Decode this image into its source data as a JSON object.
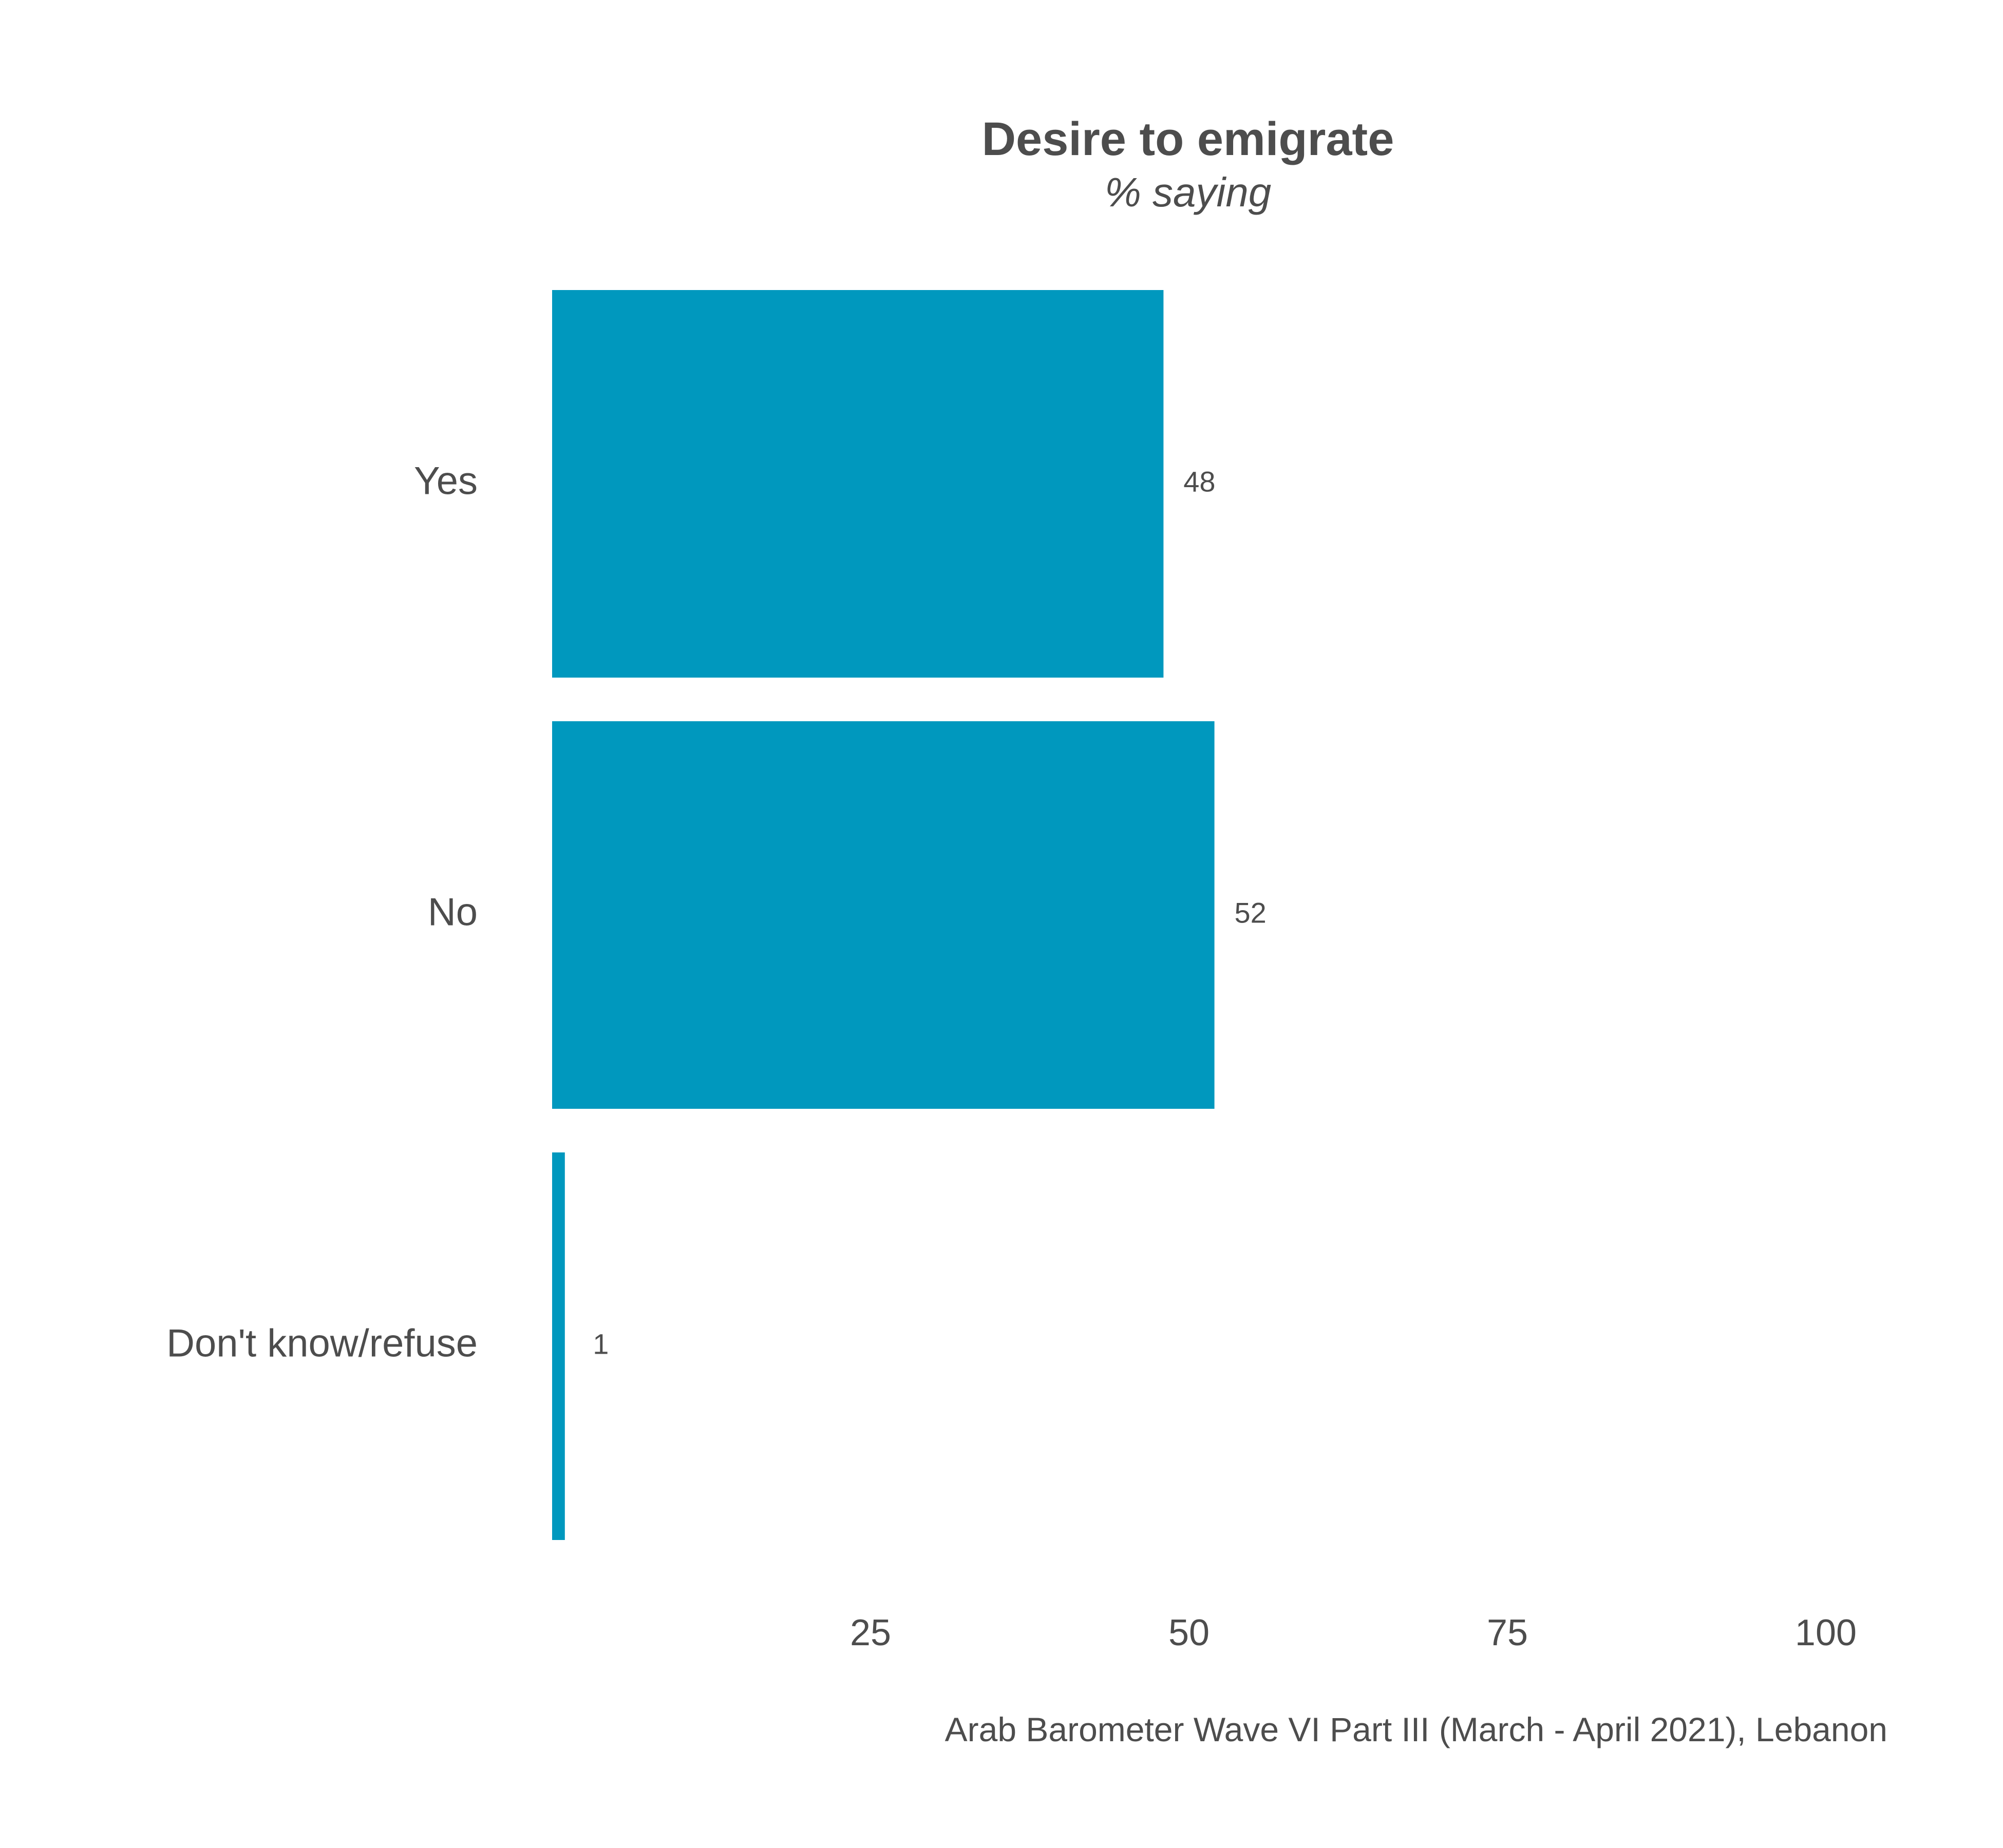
{
  "chart_data": {
    "type": "bar",
    "orientation": "horizontal",
    "title": "Desire to emigrate",
    "subtitle": "% saying",
    "categories": [
      "Yes",
      "No",
      "Don't know/refuse"
    ],
    "values": [
      48,
      52,
      1
    ],
    "value_labels": [
      "48",
      "52",
      "1"
    ],
    "xticks": [
      25,
      50,
      75,
      100
    ],
    "xtick_labels": [
      "25",
      "50",
      "75",
      "100"
    ],
    "xlim": [
      0,
      100
    ],
    "grid": false,
    "legend": "none",
    "bar_color": "#0098be",
    "caption": "Arab Barometer Wave VI Part III (March - April 2021), Lebanon"
  }
}
